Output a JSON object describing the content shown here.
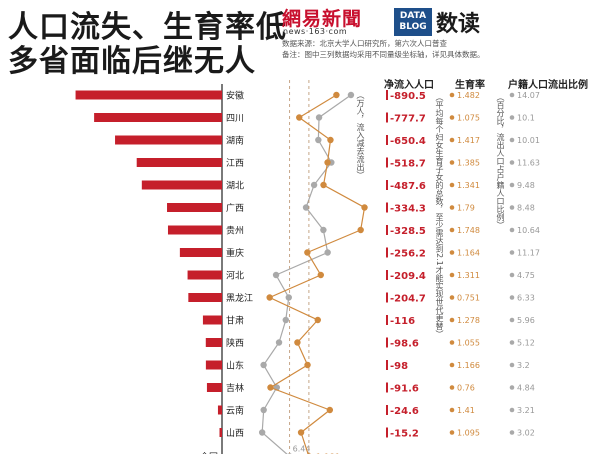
{
  "title": {
    "line1": "人口流失、生育率低",
    "line2": "多省面临后继无人"
  },
  "logo": {
    "brand": "網易新聞",
    "url": "news·163·com",
    "datablog_top": "DATA",
    "datablog_bottom": "BLOG",
    "datablog_cn": "数读"
  },
  "source": {
    "line1": "数据来源：北京大学人口研究所，第六次人口普查",
    "line2": "备注：图中三列数据均采用不同量级坐标轴，详见具体数据。"
  },
  "columns": {
    "net": "净流入人口",
    "net_unit": "（万人，流入减去流出）",
    "fertility": "生育率",
    "fertility_note": "（平均每个妇女生育子女的总数，至少需达到2.1才能实现世代更替）",
    "ratio": "户籍人口流出比例",
    "ratio_unit": "（百分比，流出人口占户籍人口比例）"
  },
  "colors": {
    "bar": "#c51f2b",
    "fertility": "#d08a3e",
    "ratio": "#a9a9a9",
    "national_line": "#b8906a",
    "axis": "#222222"
  },
  "chart_data": {
    "type": "bar",
    "categories": [
      "安徽",
      "四川",
      "湖南",
      "江西",
      "湖北",
      "广西",
      "贵州",
      "重庆",
      "河北",
      "黑龙江",
      "甘肃",
      "陕西",
      "山东",
      "吉林",
      "云南",
      "山西"
    ],
    "series": [
      {
        "name": "净流入人口",
        "values": [
          -890.5,
          -777.7,
          -650.4,
          -518.7,
          -487.6,
          -334.3,
          -328.5,
          -256.2,
          -209.4,
          -204.7,
          -116,
          -98.6,
          -98,
          -91.6,
          -24.6,
          -15.2
        ]
      },
      {
        "name": "生育率",
        "values": [
          1.482,
          1.075,
          1.417,
          1.385,
          1.341,
          1.79,
          1.748,
          1.164,
          1.311,
          0.751,
          1.278,
          1.055,
          1.166,
          0.76,
          1.41,
          1.095
        ]
      },
      {
        "name": "户籍人口流出比例",
        "values": [
          14.07,
          10.1,
          10.01,
          11.63,
          9.48,
          8.48,
          10.64,
          11.17,
          4.75,
          6.33,
          5.96,
          5.12,
          3.2,
          4.84,
          3.21,
          3.02
        ]
      }
    ],
    "national": {
      "label": "全国",
      "fertility": 1.181,
      "ratio": 6.44
    }
  }
}
